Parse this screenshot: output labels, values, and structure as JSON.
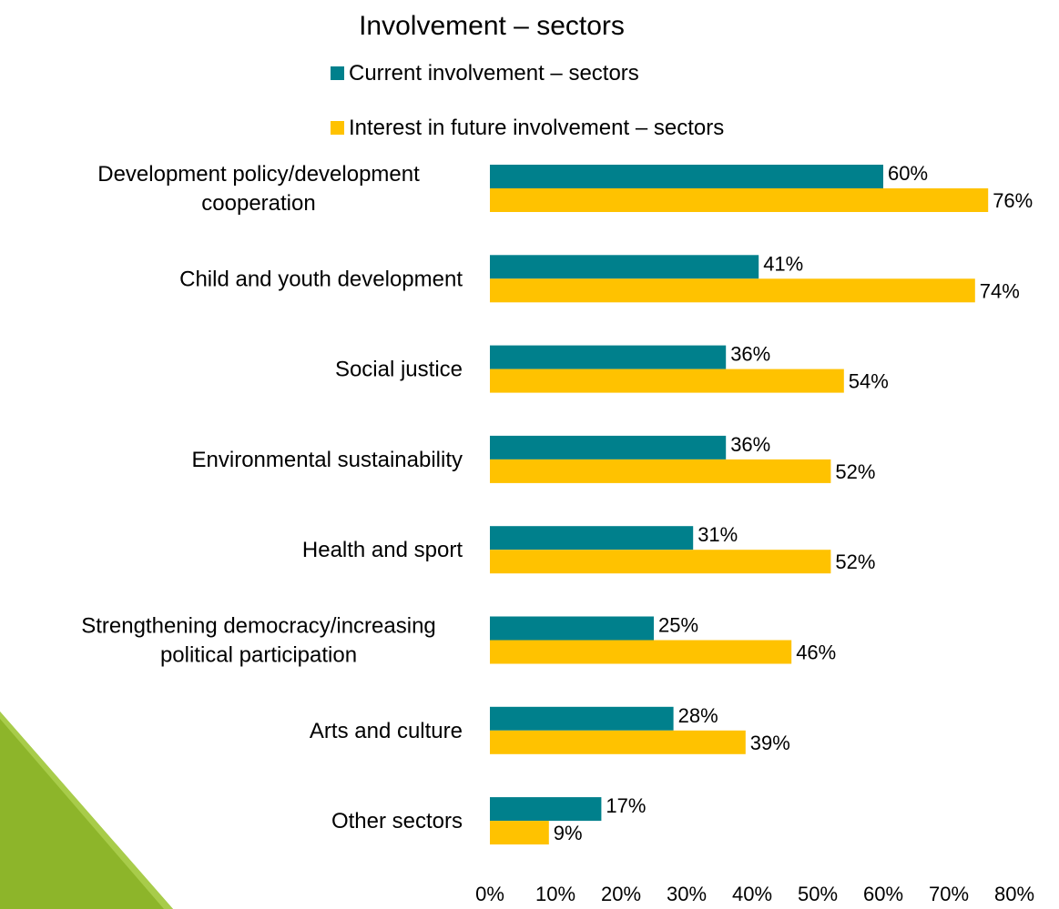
{
  "chart_data": {
    "type": "bar",
    "orientation": "horizontal",
    "title": "Involvement – sectors",
    "categories": [
      "Development policy/development cooperation",
      "Child and youth development",
      "Social justice",
      "Environmental sustainability",
      "Health and sport",
      "Strengthening democracy/increasing political participation",
      "Arts and culture",
      "Other sectors"
    ],
    "category_lines": [
      [
        "Development policy/development",
        "cooperation"
      ],
      [
        "Child and youth development"
      ],
      [
        "Social justice"
      ],
      [
        "Environmental sustainability"
      ],
      [
        "Health and sport"
      ],
      [
        "Strengthening democracy/increasing",
        "political participation"
      ],
      [
        "Arts and culture"
      ],
      [
        "Other sectors"
      ]
    ],
    "series": [
      {
        "name": "Current involvement – sectors",
        "color": "#00808C",
        "values": [
          60,
          41,
          36,
          36,
          31,
          25,
          28,
          17
        ],
        "labels": [
          "60%",
          "41%",
          "36%",
          "36%",
          "31%",
          "25%",
          "28%",
          "17%"
        ]
      },
      {
        "name": "Interest in future involvement – sectors",
        "color": "#FFC200",
        "values": [
          76,
          74,
          54,
          52,
          52,
          46,
          39,
          9
        ],
        "labels": [
          "76%",
          "74%",
          "54%",
          "52%",
          "52%",
          "46%",
          "39%",
          "9%"
        ]
      }
    ],
    "xlim": [
      0,
      80
    ],
    "x_ticks": [
      "0%",
      "10%",
      "20%",
      "30%",
      "40%",
      "50%",
      "60%",
      "70%",
      "80%"
    ],
    "legend_position": "top",
    "grid": false,
    "decoration_color": "#8DB52A"
  }
}
